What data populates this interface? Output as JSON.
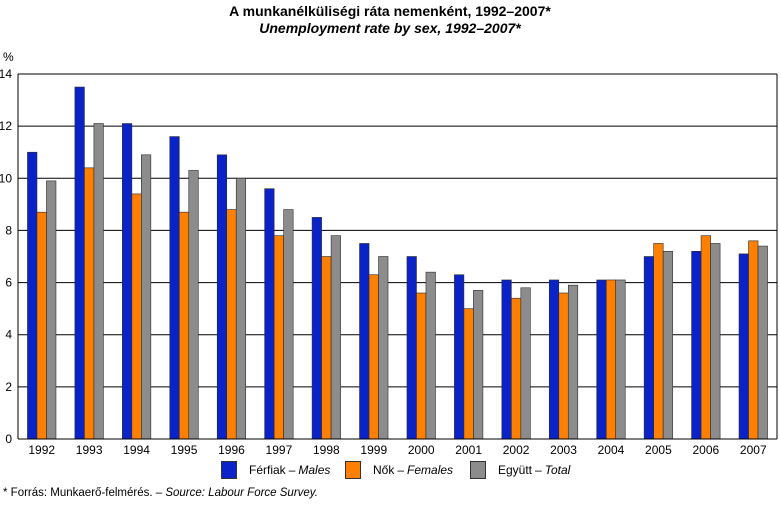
{
  "title": "A munkanélküliségi ráta nemenként, 1992–2007*",
  "subtitle": "Unemployment rate by sex, 1992–2007*",
  "y_unit": "%",
  "legend": [
    {
      "hu": "Férfiak",
      "sep": "–",
      "en": "Males",
      "color": "#0a23c8"
    },
    {
      "hu": "Nők",
      "sep": "–",
      "en": "Females",
      "color": "#ff7f00"
    },
    {
      "hu": "Együtt",
      "sep": "–",
      "en": "Total",
      "color": "#8c8c8c"
    }
  ],
  "footnote": {
    "prefix": "* Forrás: Munkaerő-felmérés. –",
    "en": "Source: Labour Force Survey."
  },
  "chart_data": {
    "type": "bar",
    "title": "A munkanélküliségi ráta nemenként, 1992–2007*",
    "subtitle": "Unemployment rate by sex, 1992–2007*",
    "ylabel": "%",
    "ylim": [
      0,
      14
    ],
    "yticks": [
      0,
      2,
      4,
      6,
      8,
      10,
      12,
      14
    ],
    "grid": true,
    "legend_position": "bottom",
    "categories": [
      "1992",
      "1993",
      "1994",
      "1995",
      "1996",
      "1997",
      "1998",
      "1999",
      "2000",
      "2001",
      "2002",
      "2003",
      "2004",
      "2005",
      "2006",
      "2007"
    ],
    "series": [
      {
        "name": "Férfiak – Males",
        "color": "#0a23c8",
        "values": [
          11.0,
          13.5,
          12.1,
          11.6,
          10.9,
          9.6,
          8.5,
          7.5,
          7.0,
          6.3,
          6.1,
          6.1,
          6.1,
          7.0,
          7.2,
          7.1
        ]
      },
      {
        "name": "Nők – Females",
        "color": "#ff7f00",
        "values": [
          8.7,
          10.4,
          9.4,
          8.7,
          8.8,
          7.8,
          7.0,
          6.3,
          5.6,
          5.0,
          5.4,
          5.6,
          6.1,
          7.5,
          7.8,
          7.6
        ]
      },
      {
        "name": "Együtt – Total",
        "color": "#8c8c8c",
        "values": [
          9.9,
          12.1,
          10.9,
          10.3,
          10.0,
          8.8,
          7.8,
          7.0,
          6.4,
          5.7,
          5.8,
          5.9,
          6.1,
          7.2,
          7.5,
          7.4
        ]
      }
    ]
  }
}
